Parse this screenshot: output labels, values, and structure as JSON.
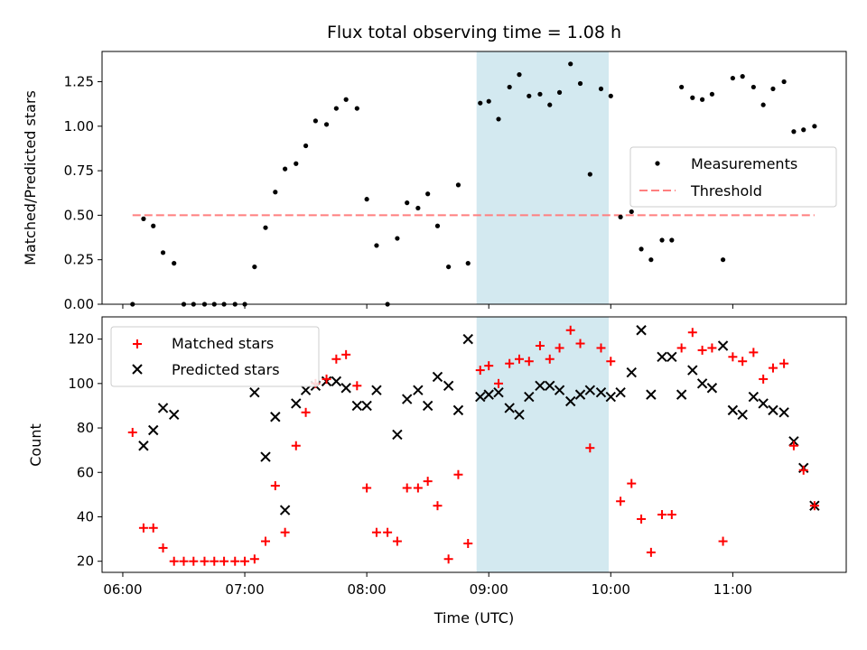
{
  "chart_data": [
    {
      "type": "scatter",
      "title": "Flux total observing time = 1.08 h",
      "xlabel": "",
      "ylabel": "Matched/Predicted stars",
      "xlim": [
        5.83,
        11.93
      ],
      "ylim": [
        0,
        1.42
      ],
      "xticks": [
        6,
        7,
        8,
        9,
        10,
        11
      ],
      "yticks": [
        0,
        0.25,
        0.5,
        0.75,
        1.0,
        1.25
      ],
      "ytick_labels": [
        "0.00",
        "0.25",
        "0.50",
        "0.75",
        "1.00",
        "1.25"
      ],
      "highlight_span": [
        8.9,
        9.983
      ],
      "highlight_color": "#d3e9f0",
      "legend_position": "center-right",
      "series": [
        {
          "name": "Measurements",
          "marker": "dot",
          "color": "#000000",
          "points": [
            [
              6.08,
              0.0
            ],
            [
              6.17,
              0.48
            ],
            [
              6.25,
              0.44
            ],
            [
              6.33,
              0.29
            ],
            [
              6.42,
              0.23
            ],
            [
              6.5,
              0.0
            ],
            [
              6.58,
              0.0
            ],
            [
              6.67,
              0.0
            ],
            [
              6.75,
              0.0
            ],
            [
              6.83,
              0.0
            ],
            [
              6.92,
              0.0
            ],
            [
              7.0,
              0.0
            ],
            [
              7.08,
              0.21
            ],
            [
              7.17,
              0.43
            ],
            [
              7.25,
              0.63
            ],
            [
              7.33,
              0.76
            ],
            [
              7.42,
              0.79
            ],
            [
              7.5,
              0.89
            ],
            [
              7.58,
              1.03
            ],
            [
              7.67,
              1.01
            ],
            [
              7.75,
              1.1
            ],
            [
              7.83,
              1.15
            ],
            [
              7.92,
              1.1
            ],
            [
              8.0,
              0.59
            ],
            [
              8.08,
              0.33
            ],
            [
              8.17,
              0.0
            ],
            [
              8.25,
              0.37
            ],
            [
              8.33,
              0.57
            ],
            [
              8.42,
              0.54
            ],
            [
              8.5,
              0.62
            ],
            [
              8.58,
              0.44
            ],
            [
              8.67,
              0.21
            ],
            [
              8.75,
              0.67
            ],
            [
              8.83,
              0.23
            ],
            [
              8.93,
              1.13
            ],
            [
              9.0,
              1.14
            ],
            [
              9.08,
              1.04
            ],
            [
              9.17,
              1.22
            ],
            [
              9.25,
              1.29
            ],
            [
              9.33,
              1.17
            ],
            [
              9.42,
              1.18
            ],
            [
              9.5,
              1.12
            ],
            [
              9.58,
              1.19
            ],
            [
              9.67,
              1.35
            ],
            [
              9.75,
              1.24
            ],
            [
              9.83,
              0.73
            ],
            [
              9.92,
              1.21
            ],
            [
              10.0,
              1.17
            ],
            [
              10.08,
              0.49
            ],
            [
              10.17,
              0.52
            ],
            [
              10.25,
              0.31
            ],
            [
              10.33,
              0.25
            ],
            [
              10.42,
              0.36
            ],
            [
              10.5,
              0.36
            ],
            [
              10.58,
              1.22
            ],
            [
              10.67,
              1.16
            ],
            [
              10.75,
              1.15
            ],
            [
              10.83,
              1.18
            ],
            [
              10.92,
              0.25
            ],
            [
              11.0,
              1.27
            ],
            [
              11.08,
              1.28
            ],
            [
              11.17,
              1.22
            ],
            [
              11.25,
              1.12
            ],
            [
              11.33,
              1.21
            ],
            [
              11.42,
              1.25
            ],
            [
              11.5,
              0.97
            ],
            [
              11.58,
              0.98
            ],
            [
              11.67,
              1.0
            ]
          ]
        },
        {
          "name": "Threshold",
          "marker": "dashed-line",
          "color": "#ff7f7f",
          "points": [
            [
              6.08,
              0.5
            ],
            [
              11.67,
              0.5
            ]
          ]
        }
      ]
    },
    {
      "type": "scatter",
      "title": "",
      "xlabel": "Time (UTC)",
      "ylabel": "Count",
      "xlim": [
        5.83,
        11.93
      ],
      "ylim": [
        15,
        130
      ],
      "xticks": [
        6,
        7,
        8,
        9,
        10,
        11
      ],
      "xtick_labels": [
        "06:00",
        "07:00",
        "08:00",
        "09:00",
        "10:00",
        "11:00"
      ],
      "yticks": [
        20,
        40,
        60,
        80,
        100,
        120
      ],
      "ytick_labels": [
        "20",
        "40",
        "60",
        "80",
        "100",
        "120"
      ],
      "highlight_span": [
        8.9,
        9.983
      ],
      "highlight_color": "#d3e9f0",
      "legend_position": "upper-left",
      "series": [
        {
          "name": "Matched stars",
          "marker": "plus",
          "color": "#ff0000",
          "points": [
            [
              6.08,
              78
            ],
            [
              6.17,
              35
            ],
            [
              6.25,
              35
            ],
            [
              6.33,
              26
            ],
            [
              6.42,
              20
            ],
            [
              6.5,
              20
            ],
            [
              6.58,
              20
            ],
            [
              6.67,
              20
            ],
            [
              6.75,
              20
            ],
            [
              6.83,
              20
            ],
            [
              6.92,
              20
            ],
            [
              7.0,
              20
            ],
            [
              7.08,
              21
            ],
            [
              7.17,
              29
            ],
            [
              7.25,
              54
            ],
            [
              7.33,
              33
            ],
            [
              7.42,
              72
            ],
            [
              7.5,
              87
            ],
            [
              7.58,
              100
            ],
            [
              7.67,
              102
            ],
            [
              7.75,
              111
            ],
            [
              7.83,
              113
            ],
            [
              7.92,
              99
            ],
            [
              8.0,
              53
            ],
            [
              8.08,
              33
            ],
            [
              8.17,
              33
            ],
            [
              8.25,
              29
            ],
            [
              8.33,
              53
            ],
            [
              8.42,
              53
            ],
            [
              8.5,
              56
            ],
            [
              8.58,
              45
            ],
            [
              8.67,
              21
            ],
            [
              8.75,
              59
            ],
            [
              8.83,
              28
            ],
            [
              8.93,
              106
            ],
            [
              9.0,
              108
            ],
            [
              9.08,
              100
            ],
            [
              9.17,
              109
            ],
            [
              9.25,
              111
            ],
            [
              9.33,
              110
            ],
            [
              9.42,
              117
            ],
            [
              9.5,
              111
            ],
            [
              9.58,
              116
            ],
            [
              9.67,
              124
            ],
            [
              9.75,
              118
            ],
            [
              9.83,
              71
            ],
            [
              9.92,
              116
            ],
            [
              10.0,
              110
            ],
            [
              10.08,
              47
            ],
            [
              10.17,
              55
            ],
            [
              10.25,
              39
            ],
            [
              10.33,
              24
            ],
            [
              10.42,
              41
            ],
            [
              10.5,
              41
            ],
            [
              10.58,
              116
            ],
            [
              10.67,
              123
            ],
            [
              10.75,
              115
            ],
            [
              10.83,
              116
            ],
            [
              10.92,
              29
            ],
            [
              11.0,
              112
            ],
            [
              11.08,
              110
            ],
            [
              11.17,
              114
            ],
            [
              11.25,
              102
            ],
            [
              11.33,
              107
            ],
            [
              11.42,
              109
            ],
            [
              11.5,
              72
            ],
            [
              11.58,
              61
            ],
            [
              11.67,
              45
            ]
          ]
        },
        {
          "name": "Predicted stars",
          "marker": "x",
          "color": "#000000",
          "points": [
            [
              6.17,
              72
            ],
            [
              6.25,
              79
            ],
            [
              6.33,
              89
            ],
            [
              6.42,
              86
            ],
            [
              7.08,
              96
            ],
            [
              7.17,
              67
            ],
            [
              7.25,
              85
            ],
            [
              7.33,
              43
            ],
            [
              7.42,
              91
            ],
            [
              7.5,
              97
            ],
            [
              7.58,
              99
            ],
            [
              7.67,
              101
            ],
            [
              7.75,
              101
            ],
            [
              7.83,
              98
            ],
            [
              7.92,
              90
            ],
            [
              8.0,
              90
            ],
            [
              8.08,
              97
            ],
            [
              8.25,
              77
            ],
            [
              8.33,
              93
            ],
            [
              8.42,
              97
            ],
            [
              8.5,
              90
            ],
            [
              8.58,
              103
            ],
            [
              8.67,
              99
            ],
            [
              8.75,
              88
            ],
            [
              8.83,
              120
            ],
            [
              8.93,
              94
            ],
            [
              9.0,
              95
            ],
            [
              9.08,
              96
            ],
            [
              9.17,
              89
            ],
            [
              9.25,
              86
            ],
            [
              9.33,
              94
            ],
            [
              9.42,
              99
            ],
            [
              9.5,
              99
            ],
            [
              9.58,
              97
            ],
            [
              9.67,
              92
            ],
            [
              9.75,
              95
            ],
            [
              9.83,
              97
            ],
            [
              9.92,
              96
            ],
            [
              10.0,
              94
            ],
            [
              10.08,
              96
            ],
            [
              10.17,
              105
            ],
            [
              10.25,
              124
            ],
            [
              10.33,
              95
            ],
            [
              10.42,
              112
            ],
            [
              10.5,
              112
            ],
            [
              10.58,
              95
            ],
            [
              10.67,
              106
            ],
            [
              10.75,
              100
            ],
            [
              10.83,
              98
            ],
            [
              10.92,
              117
            ],
            [
              11.0,
              88
            ],
            [
              11.08,
              86
            ],
            [
              11.17,
              94
            ],
            [
              11.25,
              91
            ],
            [
              11.33,
              88
            ],
            [
              11.42,
              87
            ],
            [
              11.5,
              74
            ],
            [
              11.58,
              62
            ],
            [
              11.67,
              45
            ]
          ]
        }
      ]
    }
  ]
}
